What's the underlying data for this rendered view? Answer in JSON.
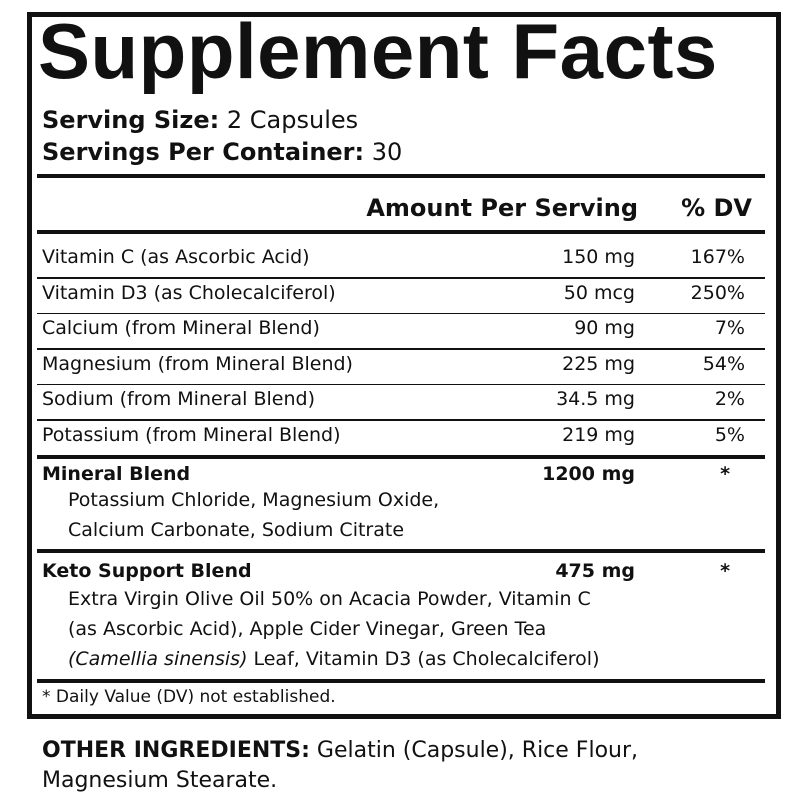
{
  "title": "Supplement Facts",
  "serving": {
    "size_label": "Serving Size:",
    "size_value": "2 Capsules",
    "per_container_label": "Servings Per Container:",
    "per_container_value": "30"
  },
  "header": {
    "amount": "Amount Per Serving",
    "dv": "% DV"
  },
  "nutrients": [
    {
      "name": "Vitamin C (as Ascorbic Acid)",
      "amount": "150 mg",
      "dv": "167%"
    },
    {
      "name": "Vitamin D3 (as Cholecalciferol)",
      "amount": "50 mcg",
      "dv": "250%"
    },
    {
      "name": "Calcium (from Mineral Blend)",
      "amount": "90 mg",
      "dv": "7%"
    },
    {
      "name": "Magnesium (from Mineral Blend)",
      "amount": "225 mg",
      "dv": "54%"
    },
    {
      "name": "Sodium (from Mineral Blend)",
      "amount": "34.5 mg",
      "dv": "2%"
    },
    {
      "name": "Potassium (from Mineral Blend)",
      "amount": "219 mg",
      "dv": "5%"
    }
  ],
  "mineral_blend": {
    "name": "Mineral Blend",
    "amount": "1200 mg",
    "dv": "*",
    "lines": [
      "Potassium Chloride, Magnesium Oxide,",
      "Calcium Carbonate, Sodium Citrate"
    ]
  },
  "keto_blend": {
    "name": "Keto Support Blend",
    "amount": "475 mg",
    "dv": "*",
    "lines": [
      "Extra Virgin Olive Oil 50% on Acacia Powder, Vitamin C",
      "(as Ascorbic Acid), Apple Cider Vinegar, Green Tea"
    ],
    "last_line_italic": "(Camellia sinensis)",
    "last_line_rest": "Leaf, Vitamin D3 (as Cholecalciferol)"
  },
  "footnote": "* Daily Value (DV) not established.",
  "other_ingredients": {
    "label": "OTHER INGREDIENTS:",
    "line1": "Gelatin (Capsule), Rice Flour,",
    "line2": "Magnesium Stearate."
  }
}
